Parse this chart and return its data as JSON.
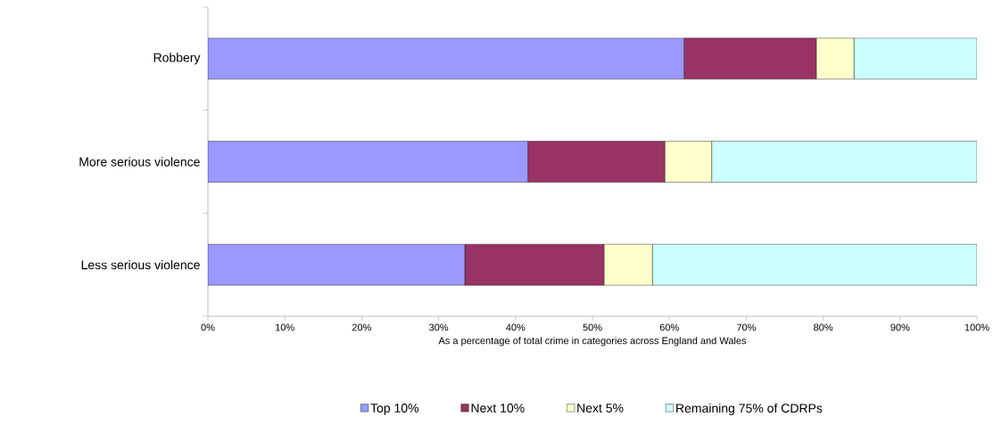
{
  "chart_data": {
    "type": "bar",
    "orientation": "horizontal",
    "stacked": true,
    "xlabel": "As a percentage of total crime in categories across England and Wales",
    "categories": [
      "Robbery",
      "More serious violence",
      "Less serious violence"
    ],
    "series": [
      {
        "name": "Top 10%",
        "color": "#9999ff",
        "values": [
          61.9,
          41.6,
          33.4
        ]
      },
      {
        "name": "Next 10%",
        "color": "#993366",
        "values": [
          17.2,
          17.8,
          18.1
        ]
      },
      {
        "name": "Next 5%",
        "color": "#ffffcc",
        "values": [
          4.9,
          6.1,
          6.3
        ]
      },
      {
        "name": "Remaining 75% of CDRPs",
        "color": "#ccffff",
        "values": [
          16.0,
          34.5,
          42.2
        ]
      }
    ],
    "xlim": [
      0,
      100
    ],
    "xticks": [
      {
        "value": 0,
        "label": "0%"
      },
      {
        "value": 10,
        "label": "10%"
      },
      {
        "value": 20,
        "label": "20%"
      },
      {
        "value": 30,
        "label": "30%"
      },
      {
        "value": 40,
        "label": "40%"
      },
      {
        "value": 50,
        "label": "50%"
      },
      {
        "value": 60,
        "label": "60%"
      },
      {
        "value": 70,
        "label": "70%"
      },
      {
        "value": 80,
        "label": "80%"
      },
      {
        "value": 90,
        "label": "90%"
      },
      {
        "value": 100,
        "label": "100%"
      }
    ],
    "grid": false,
    "legend": "bottom"
  }
}
